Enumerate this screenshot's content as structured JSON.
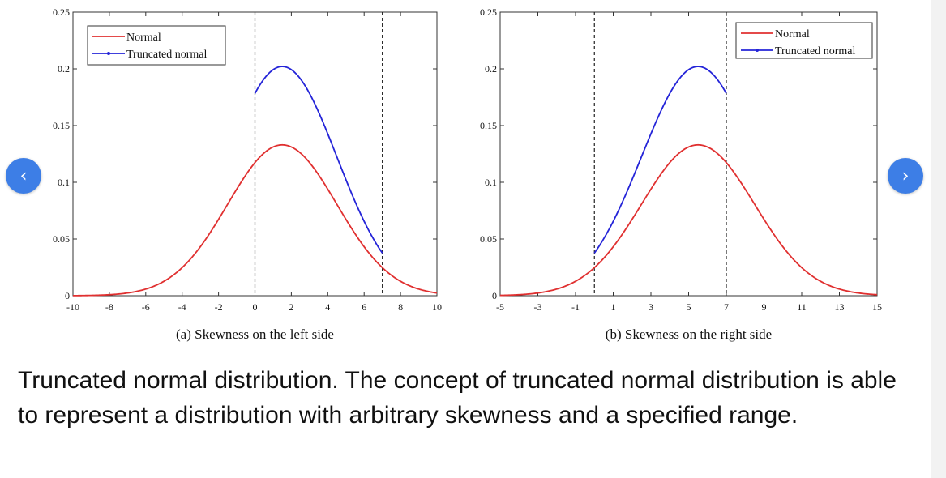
{
  "carousel": {
    "prev_icon": "chevron-left-icon",
    "prev_glyph": "‹",
    "next_icon": "chevron-right-icon",
    "next_glyph": "›",
    "accent_color": "#3d7ee6"
  },
  "caption": "Truncated normal distribution. The concept of truncated normal distribution is able to represent a distribution with arbitrary skewness and a specified range.",
  "chart_data": [
    {
      "type": "line",
      "caption": "(a) Skewness  on the left side",
      "xlim": [
        -10,
        10
      ],
      "ylim": [
        0,
        0.25
      ],
      "xticks": [
        "-10",
        "-8",
        "-6",
        "-4",
        "-2",
        "0",
        "2",
        "4",
        "6",
        "8",
        "10"
      ],
      "yticks": [
        "0",
        "0.05",
        "0.1",
        "0.15",
        "0.2",
        "0.25"
      ],
      "grid": false,
      "legend_position": "top-left",
      "truncation_bounds": [
        0,
        7
      ],
      "normal": {
        "mean": 1.5,
        "sd": 3
      },
      "series": [
        {
          "name": "Normal",
          "color": "#e03030",
          "x": [
            -10,
            -9,
            -8,
            -7,
            -6,
            -5,
            -4,
            -3,
            -2,
            -1,
            0,
            1,
            1.5,
            2,
            3,
            4,
            5,
            6,
            7,
            8,
            9,
            10
          ],
          "values": [
            0.0001,
            0.0006,
            0.0012,
            0.0024,
            0.0048,
            0.0091,
            0.0165,
            0.0284,
            0.0467,
            0.075,
            0.117,
            0.132,
            0.133,
            0.132,
            0.117,
            0.0944,
            0.0672,
            0.0433,
            0.0248,
            0.0127,
            0.0058,
            0.0025
          ]
        },
        {
          "name": "Truncated normal",
          "color": "#2424d8",
          "x": [
            0,
            0.5,
            1,
            1.5,
            2,
            2.5,
            3,
            3.5,
            4,
            4.5,
            5,
            5.5,
            6,
            6.5,
            7
          ],
          "values": [
            0.178,
            0.192,
            0.2,
            0.202,
            0.2,
            0.193,
            0.18,
            0.164,
            0.144,
            0.123,
            0.103,
            0.084,
            0.066,
            0.051,
            0.037
          ]
        }
      ]
    },
    {
      "type": "line",
      "caption": "(b) Skewness  on the right side",
      "xlim": [
        -5,
        15
      ],
      "ylim": [
        0,
        0.25
      ],
      "xticks": [
        "-5",
        "-3",
        "-1",
        "1",
        "3",
        "5",
        "7",
        "9",
        "11",
        "13",
        "15"
      ],
      "yticks": [
        "0",
        "0.05",
        "0.1",
        "0.15",
        "0.2",
        "0.25"
      ],
      "grid": false,
      "legend_position": "top-right",
      "truncation_bounds": [
        0,
        7
      ],
      "normal": {
        "mean": 5.5,
        "sd": 3
      },
      "series": [
        {
          "name": "Normal",
          "color": "#e03030",
          "x": [
            -5,
            -4,
            -3,
            -2,
            -1,
            0,
            1,
            2,
            3,
            4,
            5,
            5.5,
            6,
            7,
            8,
            9,
            10,
            11,
            12,
            13,
            14,
            15
          ],
          "values": [
            0.001,
            0.002,
            0.004,
            0.008,
            0.015,
            0.025,
            0.042,
            0.067,
            0.094,
            0.117,
            0.132,
            0.133,
            0.132,
            0.117,
            0.094,
            0.067,
            0.043,
            0.025,
            0.013,
            0.006,
            0.0025,
            0.001
          ]
        },
        {
          "name": "Truncated normal",
          "color": "#2424d8",
          "x": [
            0,
            0.5,
            1,
            1.5,
            2,
            2.5,
            3,
            3.5,
            4,
            4.5,
            5,
            5.5,
            6,
            6.5,
            7
          ],
          "values": [
            0.037,
            0.051,
            0.066,
            0.084,
            0.103,
            0.123,
            0.144,
            0.164,
            0.18,
            0.193,
            0.2,
            0.202,
            0.2,
            0.192,
            0.178
          ]
        }
      ]
    }
  ]
}
